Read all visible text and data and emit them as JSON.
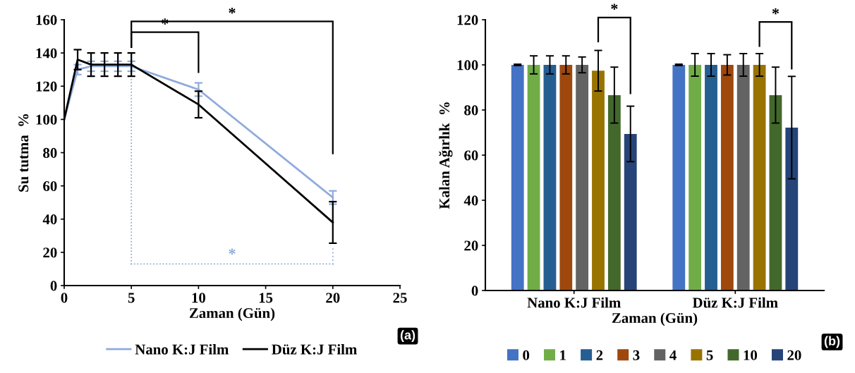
{
  "chart_data": [
    {
      "type": "line",
      "xlabel": "Zaman (Gün)",
      "ylabel": "Su tutma  %",
      "x": [
        0,
        1,
        2,
        3,
        4,
        5,
        10,
        20
      ],
      "xlim": [
        0,
        25
      ],
      "xticks": [
        0,
        5,
        10,
        15,
        20,
        25
      ],
      "ylim": [
        0,
        160
      ],
      "yticks": [
        0,
        20,
        40,
        60,
        80,
        100,
        120,
        140,
        160
      ],
      "legend": "bottom",
      "marker": "none",
      "line_style": "solid",
      "grid": false,
      "series": [
        {
          "name": "Nano K:J Film",
          "color": "#8faadc",
          "values": [
            100,
            130,
            132,
            132,
            132,
            132,
            118,
            53
          ],
          "errors": [
            null,
            3,
            3,
            3,
            3,
            3,
            4,
            4
          ]
        },
        {
          "name": "Düz K:J Film",
          "color": "#000000",
          "values": [
            100,
            136,
            133,
            133,
            133,
            133,
            109,
            38
          ],
          "errors": [
            null,
            6,
            7,
            7,
            7,
            7,
            8,
            12.5
          ]
        }
      ],
      "annotations": [
        "*",
        "*",
        "*",
        "(a)"
      ]
    },
    {
      "type": "bar",
      "xlabel": "Zaman (Gün)",
      "ylabel": "Kalan Ağırlık  %",
      "categories": [
        "Nano K:J Film",
        "Düz K:J Film"
      ],
      "ylim": [
        0,
        120
      ],
      "yticks": [
        0,
        20,
        40,
        60,
        80,
        100,
        120
      ],
      "legend": "bottom",
      "grid": false,
      "series": [
        {
          "name": "0",
          "color": "#4472c4",
          "values": [
            100,
            100
          ],
          "errors": [
            0.3,
            0.3
          ]
        },
        {
          "name": "1",
          "color": "#70ad47",
          "values": [
            100,
            100
          ],
          "errors": [
            4,
            5
          ]
        },
        {
          "name": "2",
          "color": "#255e91",
          "values": [
            100,
            100
          ],
          "errors": [
            4,
            5
          ]
        },
        {
          "name": "3",
          "color": "#9e480e",
          "values": [
            100,
            100
          ],
          "errors": [
            4,
            4.5
          ]
        },
        {
          "name": "4",
          "color": "#636363",
          "values": [
            100,
            100
          ],
          "errors": [
            3.5,
            5
          ]
        },
        {
          "name": "5",
          "color": "#997300",
          "values": [
            97.4,
            100
          ],
          "errors": [
            9,
            5
          ]
        },
        {
          "name": "10",
          "color": "#43682b",
          "values": [
            86.6,
            86.6
          ],
          "errors": [
            12.4,
            12.4
          ]
        },
        {
          "name": "20",
          "color": "#264478",
          "values": [
            69.4,
            72.2
          ],
          "errors": [
            12.3,
            22.7
          ]
        }
      ],
      "annotations": [
        "*",
        "*",
        "(b)"
      ]
    }
  ]
}
